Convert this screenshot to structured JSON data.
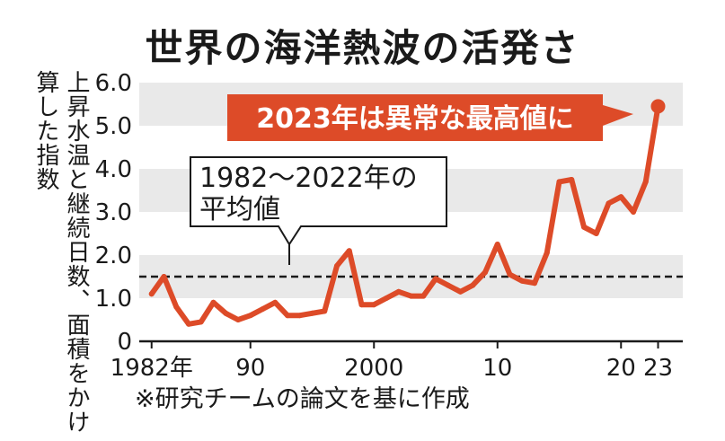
{
  "title": "世界の海洋熱波の活発さ",
  "ylabel": "上昇水温と継続日数、面積をかけ算した指数",
  "note": "※研究チームの論文を基に作成",
  "annotations": {
    "highlight": "2023年は異常な最高値に",
    "average_line1": "1982～2022年の",
    "average_line2": "平均値"
  },
  "colors": {
    "series": "#dd4b28",
    "band": "#e9e9e9",
    "text": "#1a1a1a"
  },
  "chart_data": {
    "type": "line",
    "title": "世界の海洋熱波の活発さ",
    "ylabel": "上昇水温と継続日数、面積をかけ算した指数",
    "ylim": [
      0,
      6.0
    ],
    "yticks": [
      0,
      1.0,
      2.0,
      3.0,
      4.0,
      5.0,
      6.0
    ],
    "ytick_labels": [
      "0",
      "1.0",
      "2.0",
      "3.0",
      "4.0",
      "5.0",
      "6.0"
    ],
    "xlim": [
      1981,
      2025
    ],
    "xticks": [
      1982,
      1990,
      2000,
      2010,
      2020,
      2023
    ],
    "xtick_labels": [
      "1982年",
      "90",
      "2000",
      "10",
      "20",
      "23"
    ],
    "x": [
      1982,
      1983,
      1984,
      1985,
      1986,
      1987,
      1988,
      1989,
      1990,
      1991,
      1992,
      1993,
      1994,
      1995,
      1996,
      1997,
      1998,
      1999,
      2000,
      2001,
      2002,
      2003,
      2004,
      2005,
      2006,
      2007,
      2008,
      2009,
      2010,
      2011,
      2012,
      2013,
      2014,
      2015,
      2016,
      2017,
      2018,
      2019,
      2020,
      2021,
      2022,
      2023
    ],
    "y": [
      1.1,
      1.5,
      0.8,
      0.4,
      0.45,
      0.9,
      0.65,
      0.5,
      0.6,
      0.75,
      0.9,
      0.6,
      0.6,
      0.65,
      0.7,
      1.75,
      2.1,
      0.85,
      0.85,
      1.0,
      1.15,
      1.05,
      1.05,
      1.45,
      1.3,
      1.15,
      1.3,
      1.6,
      2.25,
      1.55,
      1.4,
      1.35,
      2.05,
      3.7,
      3.75,
      2.65,
      2.5,
      3.2,
      3.35,
      3.0,
      3.7,
      5.45
    ],
    "reference_line": 1.5,
    "highlight_point": {
      "x": 2023,
      "y": 5.45
    }
  }
}
